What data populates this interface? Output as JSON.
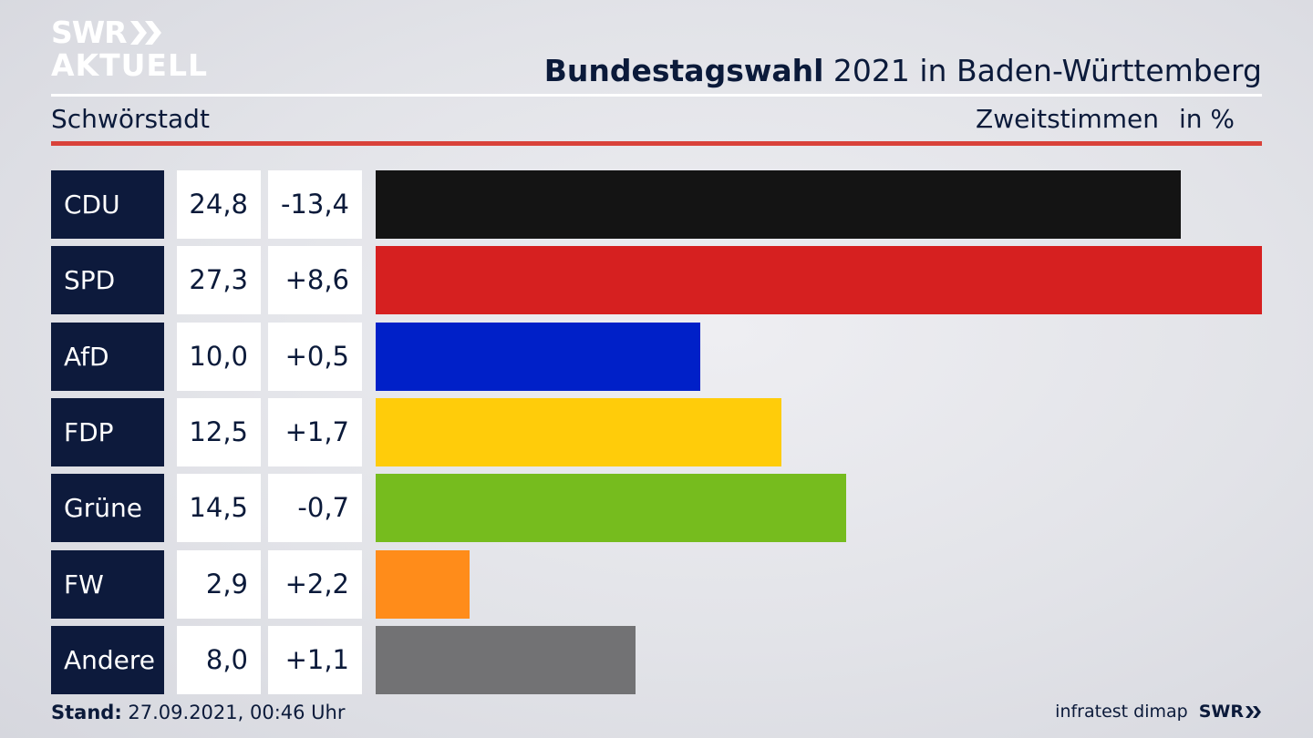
{
  "brand": {
    "logo_top": "SWR",
    "logo_bottom": "AKTUELL",
    "footer_logo": "SWR"
  },
  "header": {
    "title_bold": "Bundestagswahl",
    "title_rest": " 2021 in Baden-Württemberg",
    "subtitle": "Schwörstadt",
    "metric": "Zweitstimmen",
    "unit": "in %"
  },
  "chart_data": {
    "type": "bar",
    "categories": [
      "CDU",
      "SPD",
      "AfD",
      "FDP",
      "Grüne",
      "FW",
      "Andere"
    ],
    "values": [
      24.8,
      27.3,
      10.0,
      12.5,
      14.5,
      2.9,
      8.0
    ],
    "value_labels": [
      "24,8",
      "27,3",
      "10,0",
      "12,5",
      "14,5",
      "2,9",
      "8,0"
    ],
    "diff_labels": [
      "-13,4",
      "+8,6",
      "+0,5",
      "+1,7",
      "-0,7",
      "+2,2",
      "+1,1"
    ],
    "colors": [
      "#141414",
      "#d62020",
      "#0020c8",
      "#ffcc0a",
      "#76bc1e",
      "#ff8c1a",
      "#727274"
    ],
    "xlim": [
      0,
      27.3
    ],
    "title": "Bundestagswahl 2021 in Baden-Württemberg",
    "xlabel": "",
    "ylabel": ""
  },
  "footer": {
    "stand_label": "Stand:",
    "stand_value": " 27.09.2021, 00:46 Uhr",
    "source": "infratest dimap"
  }
}
